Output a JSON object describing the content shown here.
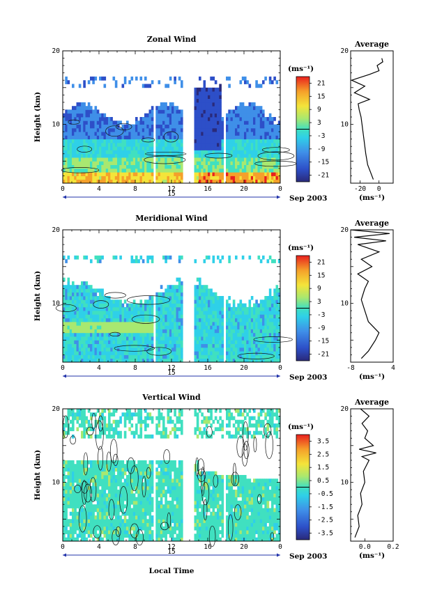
{
  "figure": {
    "shared_xlabel": "Local Time",
    "date_label": "Sep 2003",
    "day_label": "15",
    "height_label": "Height (km)",
    "unit_label": "(ms⁻¹)",
    "average_title": "Average"
  },
  "chart_data": [
    {
      "type": "heatmap",
      "title": "Zonal Wind",
      "xlabel": "Local Time",
      "ylabel": "Height (km)",
      "x_ticks": [
        "0",
        "4",
        "8",
        "12",
        "16",
        "20",
        "0"
      ],
      "y_ticks": [
        "20",
        "10"
      ],
      "xlim": [
        0,
        24
      ],
      "ylim": [
        2,
        20
      ],
      "colorbar": {
        "unit": "(ms⁻¹)",
        "ticks": [
          "21",
          "15",
          "9",
          "3",
          "-3",
          "-9",
          "-15",
          "-21"
        ],
        "range": [
          -24,
          24
        ]
      },
      "data_gaps_hours": [
        [
          9.9,
          10.2
        ],
        [
          13.2,
          14.5
        ],
        [
          17.8,
          18.1
        ]
      ],
      "profile": {
        "title": "Average",
        "xticks": [
          "-20",
          "0"
        ],
        "xlim": [
          -30,
          15
        ],
        "xunit": "(ms⁻¹)",
        "points": [
          [
            -6,
            2.5
          ],
          [
            -9,
            3.5
          ],
          [
            -12,
            4.5
          ],
          [
            -14,
            6
          ],
          [
            -16,
            8
          ],
          [
            -18,
            10
          ],
          [
            -19,
            11
          ],
          [
            -21,
            12
          ],
          [
            -22,
            12.8
          ],
          [
            -10,
            13.4
          ],
          [
            -26,
            14.3
          ],
          [
            -15,
            15.2
          ],
          [
            -29,
            16
          ],
          [
            -10,
            16.8
          ],
          [
            0,
            17.3
          ],
          [
            -2,
            18
          ],
          [
            4,
            18.5
          ],
          [
            3,
            19
          ]
        ]
      }
    },
    {
      "type": "heatmap",
      "title": "Meridional Wind",
      "xlabel": "Local Time",
      "ylabel": "Height (km)",
      "x_ticks": [
        "0",
        "4",
        "8",
        "12",
        "16",
        "20",
        "0"
      ],
      "y_ticks": [
        "20",
        "10"
      ],
      "xlim": [
        0,
        24
      ],
      "ylim": [
        2,
        20
      ],
      "colorbar": {
        "unit": "(ms⁻¹)",
        "ticks": [
          "21",
          "15",
          "9",
          "3",
          "-3",
          "-9",
          "-15",
          "-21"
        ],
        "range": [
          -24,
          24
        ]
      },
      "data_gaps_hours": [
        [
          9.9,
          10.2
        ],
        [
          13.2,
          14.5
        ],
        [
          17.8,
          18.1
        ]
      ],
      "profile": {
        "title": "Average",
        "xticks": [
          "-8",
          "4"
        ],
        "xlim": [
          -8,
          4
        ],
        "xunit": "(ms⁻¹)",
        "points": [
          [
            -5,
            2.5
          ],
          [
            -3,
            3.5
          ],
          [
            -1,
            5
          ],
          [
            0,
            6
          ],
          [
            -3,
            7.5
          ],
          [
            -4,
            9
          ],
          [
            -5,
            10.5
          ],
          [
            -4,
            12
          ],
          [
            -3,
            13
          ],
          [
            -6,
            14
          ],
          [
            -2,
            15
          ],
          [
            -5,
            16
          ],
          [
            0,
            17
          ],
          [
            -6,
            18
          ],
          [
            2,
            18.5
          ],
          [
            -7,
            19
          ],
          [
            3,
            19.5
          ],
          [
            -8,
            20
          ]
        ]
      }
    },
    {
      "type": "heatmap",
      "title": "Vertical Wind",
      "xlabel": "Local Time",
      "ylabel": "Height (km)",
      "x_ticks": [
        "0",
        "4",
        "8",
        "12",
        "16",
        "20",
        "0"
      ],
      "y_ticks": [
        "20",
        "10"
      ],
      "xlim": [
        0,
        24
      ],
      "ylim": [
        2,
        20
      ],
      "colorbar": {
        "unit": "(ms⁻¹)",
        "ticks": [
          "3.5",
          "2.5",
          "1.5",
          "0.5",
          "-0.5",
          "-1.5",
          "-2.5",
          "-3.5"
        ],
        "range": [
          -4,
          4
        ]
      },
      "data_gaps_hours": [
        [
          9.9,
          10.2
        ],
        [
          13.2,
          14.5
        ],
        [
          17.8,
          18.1
        ]
      ],
      "profile": {
        "title": "Average",
        "xticks": [
          "0.0",
          "0.2"
        ],
        "xlim": [
          -0.1,
          0.2
        ],
        "xunit": "(ms⁻¹)",
        "points": [
          [
            -0.07,
            2.5
          ],
          [
            -0.04,
            4
          ],
          [
            -0.05,
            5.5
          ],
          [
            -0.02,
            7
          ],
          [
            -0.03,
            8.5
          ],
          [
            0.0,
            10
          ],
          [
            -0.01,
            11.5
          ],
          [
            0.03,
            13
          ],
          [
            -0.02,
            13.5
          ],
          [
            0.08,
            14
          ],
          [
            -0.04,
            14.5
          ],
          [
            0.06,
            15
          ],
          [
            0.0,
            16
          ],
          [
            0.02,
            17
          ],
          [
            -0.02,
            18
          ],
          [
            0.03,
            19
          ],
          [
            -0.03,
            20
          ]
        ]
      }
    }
  ]
}
